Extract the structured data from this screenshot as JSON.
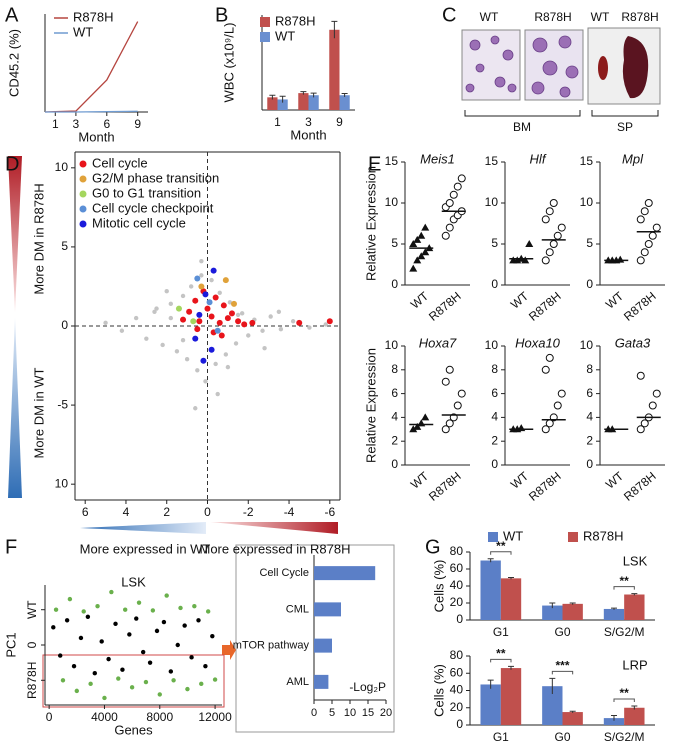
{
  "chart_data": [
    {
      "panel": "A",
      "type": "line",
      "xlabel": "Month",
      "ylabel": "CD45.2 (%)",
      "x": [
        0,
        1,
        3,
        6,
        9
      ],
      "xlim": [
        0,
        10
      ],
      "xticks": [
        1,
        3,
        6,
        9
      ],
      "ylim": [
        0,
        52
      ],
      "series": [
        {
          "name": "R878H",
          "color": "#b5453f",
          "values": [
            0,
            0.2,
            0.5,
            17,
            48
          ]
        },
        {
          "name": "WT",
          "color": "#6f9bd1",
          "values": [
            0,
            0,
            0,
            0.2,
            0.4
          ]
        }
      ]
    },
    {
      "panel": "B",
      "type": "bar",
      "xlabel": "Month",
      "ylabel": "WBC (x10⁹/L)",
      "categories": [
        "1",
        "3",
        "9"
      ],
      "ylim": [
        0,
        45
      ],
      "legend": true,
      "series": [
        {
          "name": "R878H",
          "color": "#c0504d",
          "values": [
            6,
            8,
            38
          ],
          "errors": [
            1,
            0.7,
            4
          ]
        },
        {
          "name": "WT",
          "color": "#6a8fd0",
          "values": [
            5,
            7,
            7
          ],
          "errors": [
            1.5,
            1,
            0.8
          ]
        }
      ]
    },
    {
      "panel": "D",
      "type": "scatter",
      "xlim": [
        6.5,
        -6.5
      ],
      "xticks": [
        6,
        4,
        2,
        0,
        -2,
        -4,
        -6
      ],
      "ylim": [
        -11,
        11
      ],
      "yticks": [
        10,
        5,
        0,
        -5,
        {
          "value": -10,
          "label": "10"
        }
      ],
      "y_upper_label": "More DM in R878H",
      "y_lower_label": "More DM in WT",
      "x_left_label": "More expressed in WT",
      "x_right_label": "More expressed in R878H",
      "series": [
        {
          "color": "#c4c4c4",
          "x": [
            5,
            4.2,
            3.5,
            3,
            2.6,
            2.2,
            1.8,
            1.5,
            1.2,
            1,
            0.8,
            0.5,
            0.3,
            0.1,
            -0.2,
            -0.4,
            -0.6,
            -0.9,
            -1.1,
            -1.4,
            -1.7,
            -2,
            -2.3,
            -2.7,
            -3.1,
            -3.6,
            -4.2,
            -5,
            -5.8,
            2.5,
            1.2,
            -0.5,
            -1.5,
            0.3,
            -2.8,
            1.8,
            -3.5,
            0.6,
            -1,
            2
          ],
          "y": [
            0.2,
            -0.3,
            0.5,
            -0.8,
            0.9,
            -1.2,
            1.4,
            -1.6,
            1.9,
            -2.1,
            2.5,
            -2.8,
            3.2,
            -3.5,
            2.9,
            -2.4,
            2.1,
            -1.8,
            1.5,
            -1.1,
            0.8,
            -0.6,
            0.4,
            -0.3,
            0.6,
            -0.2,
            0.3,
            -0.1,
            0.1,
            1.1,
            -0.9,
            -4.3,
            0.7,
            4.1,
            -1.4,
            0.5,
            0.9,
            -5.2,
            -2.6,
            2.2
          ]
        },
        {
          "name": "Cell cycle",
          "color": "#e8141b",
          "x": [
            1.2,
            0.9,
            0.6,
            0.4,
            0.2,
            0,
            -0.2,
            -0.4,
            -0.6,
            -0.8,
            -1,
            -1.2,
            -1.5,
            -1.8,
            -2.2,
            -0.3,
            0.5,
            -0.7,
            -6,
            -4.5
          ],
          "y": [
            0.4,
            0.9,
            1.6,
            0.3,
            2.2,
            1.1,
            0.6,
            1.8,
            0.2,
            1.3,
            0.5,
            0.8,
            0.3,
            0.1,
            0.2,
            -0.4,
            -0.2,
            -0.6,
            0.3,
            0.2
          ]
        },
        {
          "name": "G2/M phase transition",
          "color": "#e0a23a",
          "x": [
            0.3,
            -0.9,
            -1.3
          ],
          "y": [
            2.5,
            2.9,
            1.4
          ]
        },
        {
          "name": "G0 to G1 transition",
          "color": "#a4d65e",
          "x": [
            1.4,
            0.7
          ],
          "y": [
            1.1,
            0.3
          ]
        },
        {
          "name": "Cell cycle checkpoint",
          "color": "#5b8fd6",
          "x": [
            0.5,
            -0.1,
            -0.5
          ],
          "y": [
            3,
            1.5,
            -0.3
          ]
        },
        {
          "name": "Mitotic cell cycle",
          "color": "#1a1adb",
          "x": [
            0.1,
            -0.3,
            0.6,
            0.2,
            -0.2,
            0.4
          ],
          "y": [
            2,
            3.5,
            -0.8,
            -2.2,
            -1.5,
            0.7
          ]
        }
      ]
    },
    {
      "panel": "E",
      "type": "dot",
      "title": "Meis1",
      "ylabel": "Relative Expression",
      "categories": [
        "WT",
        "R878H"
      ],
      "markers": [
        "triangle",
        "circle"
      ],
      "ylim": [
        0,
        15
      ],
      "yticks": [
        0,
        5,
        10,
        15
      ],
      "points": [
        [
          2,
          3,
          3.5,
          4,
          4.5,
          5,
          5.5,
          6,
          7
        ],
        [
          6,
          7,
          8,
          8.5,
          9,
          9.5,
          10,
          11,
          12,
          13
        ]
      ],
      "means": [
        4.5,
        9
      ]
    },
    {
      "type": "dot",
      "title": "Hlf",
      "categories": [
        "WT",
        "R878H"
      ],
      "markers": [
        "triangle",
        "circle"
      ],
      "ylim": [
        0,
        15
      ],
      "yticks": [
        0,
        5,
        10,
        15
      ],
      "points": [
        [
          3,
          3,
          3.2,
          3,
          5
        ],
        [
          3,
          4,
          5,
          6,
          7,
          8,
          9,
          10
        ]
      ],
      "means": [
        3.2,
        5.5
      ]
    },
    {
      "type": "dot",
      "title": "Mpl",
      "categories": [
        "WT",
        "R878H"
      ],
      "markers": [
        "triangle",
        "circle"
      ],
      "ylim": [
        0,
        15
      ],
      "yticks": [
        0,
        5,
        10,
        15
      ],
      "points": [
        [
          3,
          3,
          3,
          3.1
        ],
        [
          3,
          4,
          5,
          6,
          7,
          8,
          9,
          10
        ]
      ],
      "means": [
        3,
        6.5
      ]
    },
    {
      "type": "dot",
      "title": "Hoxa7",
      "ylabel": "Relative Expression",
      "categories": [
        "WT",
        "R878H"
      ],
      "markers": [
        "triangle",
        "circle"
      ],
      "ylim": [
        0,
        10
      ],
      "yticks": [
        0,
        2,
        4,
        6,
        8,
        10
      ],
      "points": [
        [
          3,
          3.2,
          3.5,
          4
        ],
        [
          3,
          3.5,
          4,
          5,
          6,
          7,
          8
        ]
      ],
      "means": [
        3.4,
        4.2
      ]
    },
    {
      "type": "dot",
      "title": "Hoxa10",
      "categories": [
        "WT",
        "R878H"
      ],
      "markers": [
        "triangle",
        "circle"
      ],
      "ylim": [
        0,
        10
      ],
      "yticks": [
        0,
        2,
        4,
        6,
        8,
        10
      ],
      "points": [
        [
          3,
          3,
          3.1
        ],
        [
          3,
          3.5,
          4,
          5,
          6,
          8,
          9
        ]
      ],
      "means": [
        3,
        3.8
      ]
    },
    {
      "type": "dot",
      "title": "Gata3",
      "categories": [
        "WT",
        "R878H"
      ],
      "markers": [
        "triangle",
        "circle"
      ],
      "ylim": [
        0,
        10
      ],
      "yticks": [
        0,
        2,
        4,
        6,
        8,
        10
      ],
      "points": [
        [
          3,
          3
        ],
        [
          3,
          3.5,
          4,
          5,
          6,
          7.5
        ]
      ],
      "means": [
        3,
        4
      ]
    },
    {
      "panel": "F",
      "type": "scatter",
      "title": "LSK",
      "xlabel": "Genes",
      "ylabel": "PC1",
      "xlim": [
        -300,
        12500
      ],
      "xticks": [
        0,
        4000,
        8000,
        12000
      ],
      "ylim": [
        -1.7,
        1.7
      ],
      "yticks": [
        {
          "value": 1,
          "label": "WT"
        },
        0,
        {
          "value": -1,
          "label": "R878H"
        }
      ],
      "series": [
        {
          "color": "#000000",
          "x": [
            300,
            800,
            1300,
            1800,
            2300,
            2800,
            3300,
            3800,
            4300,
            4800,
            5300,
            5800,
            6300,
            6800,
            7300,
            7800,
            8300,
            8800,
            9300,
            9800,
            10300,
            10800,
            11300,
            11800
          ],
          "y": [
            0.5,
            -0.3,
            0.7,
            -0.6,
            0.2,
            0.8,
            -0.8,
            0.1,
            -0.4,
            0.6,
            -0.7,
            0.3,
            0.75,
            -0.2,
            -0.5,
            0.4,
            0.65,
            -0.75,
            0,
            0.55,
            -0.35,
            0.7,
            -0.6,
            0.25
          ]
        },
        {
          "color": "#6ab04c",
          "x": [
            500,
            1500,
            2500,
            3500,
            4500,
            5500,
            6500,
            7500,
            8500,
            9500,
            10500,
            11500,
            1000,
            2000,
            3000,
            4000,
            5000,
            6000,
            7000,
            8000,
            9000,
            10000,
            11000,
            12000
          ],
          "y": [
            1.0,
            1.3,
            0.95,
            1.1,
            1.5,
            1.0,
            1.2,
            0.98,
            1.4,
            1.05,
            1.1,
            0.95,
            -1.0,
            -1.3,
            -1.1,
            -1.5,
            -0.95,
            -1.2,
            -1.05,
            -1.4,
            -1.0,
            -1.25,
            -1.1,
            -0.98
          ]
        }
      ]
    },
    {
      "type": "hbar",
      "categories": [
        "Cell Cycle",
        "CML",
        "mTOR pathway",
        "AML"
      ],
      "values": [
        17,
        7.5,
        5,
        4
      ],
      "color": "#5b7fc7",
      "xlim": [
        0,
        20
      ],
      "xticks": [
        0,
        5,
        10,
        15,
        20
      ],
      "xlabel": "-Log₂P"
    },
    {
      "panel": "G",
      "type": "bar",
      "title": "LSK",
      "ylabel": "Cells (%)",
      "categories": [
        "G1",
        "G0",
        "S/G2/M"
      ],
      "ylim": [
        0,
        80
      ],
      "yticks": [
        0,
        20,
        40,
        60,
        80
      ],
      "legend": true,
      "annotations": [
        "**",
        null,
        "**"
      ],
      "series": [
        {
          "name": "WT",
          "color": "#5b7fc7",
          "values": [
            70,
            17,
            13
          ],
          "errors": [
            2,
            3,
            1
          ]
        },
        {
          "name": "R878H",
          "color": "#c0504d",
          "values": [
            49,
            19,
            30
          ],
          "errors": [
            1,
            1,
            1
          ]
        }
      ]
    },
    {
      "type": "bar",
      "title": "LRP",
      "ylabel": "Cells (%)",
      "categories": [
        "G1",
        "G0",
        "S/G2/M"
      ],
      "ylim": [
        0,
        80
      ],
      "yticks": [
        0,
        20,
        40,
        60,
        80
      ],
      "annotations": [
        "**",
        "***",
        "**"
      ],
      "series": [
        {
          "color": "#5b7fc7",
          "values": [
            47,
            45,
            8
          ],
          "errors": [
            5,
            9,
            3
          ]
        },
        {
          "color": "#c0504d",
          "values": [
            66,
            15,
            20
          ],
          "errors": [
            2,
            1,
            2
          ]
        }
      ]
    }
  ],
  "figure_c": {
    "panel": "C",
    "bm_labels": [
      "WT",
      "R878H"
    ],
    "bm": "BM",
    "sp_labels": [
      "WT",
      "R878H"
    ],
    "sp": "SP"
  }
}
